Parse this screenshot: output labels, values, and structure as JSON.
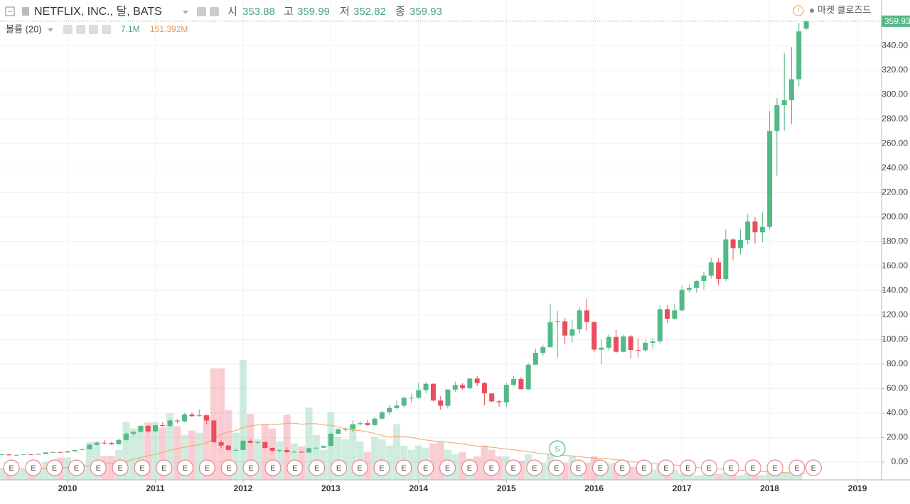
{
  "chart_data": {
    "type": "candlestick",
    "title": "NETFLIX, INC., 달, BATS",
    "header_labels": {
      "open": "시",
      "high": "고",
      "low": "저",
      "close": "종"
    },
    "volume_title": "볼륨 (20)",
    "volume_labels": {
      "volume": "7.1M",
      "volume_ma": "151.392M"
    },
    "market_status": "마켓 클로즈드",
    "up_color": "#53b987",
    "down_color": "#eb4d5c",
    "volume_ma_color": "#f0a36b",
    "grid": true,
    "xlim": [
      2009.23,
      2019.275
    ],
    "xticks": [
      2010,
      2011,
      2012,
      2013,
      2014,
      2015,
      2016,
      2017,
      2018,
      2019
    ],
    "ylim": [
      -14.5,
      361
    ],
    "yticks": [
      {
        "value": 0,
        "label": "0.00"
      },
      {
        "value": 20,
        "label": "20.00"
      },
      {
        "value": 40,
        "label": "40.00"
      },
      {
        "value": 60,
        "label": "60.00"
      },
      {
        "value": 80,
        "label": "80.00"
      },
      {
        "value": 100,
        "label": "100.00"
      },
      {
        "value": 120,
        "label": "120.00"
      },
      {
        "value": 140,
        "label": "140.00"
      },
      {
        "value": 160,
        "label": "160.00"
      },
      {
        "value": 180,
        "label": "180.00"
      },
      {
        "value": 200,
        "label": "200.00"
      },
      {
        "value": 220,
        "label": "220.00"
      },
      {
        "value": 240,
        "label": "240.00"
      },
      {
        "value": 260,
        "label": "260.00"
      },
      {
        "value": 280,
        "label": "280.00"
      },
      {
        "value": 300,
        "label": "300.00"
      },
      {
        "value": 320,
        "label": "320.00"
      },
      {
        "value": 340,
        "label": "340.00"
      }
    ],
    "x": [
      2009.25,
      2009.333,
      2009.417,
      2009.5,
      2009.583,
      2009.667,
      2009.75,
      2009.833,
      2009.917,
      2010,
      2010.083,
      2010.167,
      2010.25,
      2010.333,
      2010.417,
      2010.5,
      2010.583,
      2010.667,
      2010.75,
      2010.833,
      2010.917,
      2011,
      2011.083,
      2011.167,
      2011.25,
      2011.333,
      2011.417,
      2011.5,
      2011.583,
      2011.667,
      2011.75,
      2011.833,
      2011.917,
      2012,
      2012.083,
      2012.167,
      2012.25,
      2012.333,
      2012.417,
      2012.5,
      2012.583,
      2012.667,
      2012.75,
      2012.833,
      2012.917,
      2013,
      2013.083,
      2013.167,
      2013.25,
      2013.333,
      2013.417,
      2013.5,
      2013.583,
      2013.667,
      2013.75,
      2013.833,
      2013.917,
      2014,
      2014.083,
      2014.167,
      2014.25,
      2014.333,
      2014.417,
      2014.5,
      2014.583,
      2014.667,
      2014.75,
      2014.833,
      2014.917,
      2015,
      2015.083,
      2015.167,
      2015.25,
      2015.333,
      2015.417,
      2015.5,
      2015.583,
      2015.667,
      2015.75,
      2015.833,
      2015.917,
      2016,
      2016.083,
      2016.167,
      2016.25,
      2016.333,
      2016.417,
      2016.5,
      2016.583,
      2016.667,
      2016.75,
      2016.833,
      2016.917,
      2017,
      2017.083,
      2017.167,
      2017.25,
      2017.333,
      2017.417,
      2017.5,
      2017.583,
      2017.667,
      2017.75,
      2017.833,
      2017.917,
      2018,
      2018.083,
      2018.167,
      2018.25,
      2018.333,
      2018.417
    ],
    "open": [
      5.8,
      6.3,
      5.6,
      5.9,
      6.3,
      6.1,
      6.6,
      7.9,
      8.2,
      7.9,
      8.9,
      9.9,
      10.5,
      14.1,
      15.8,
      15.6,
      14.6,
      18.1,
      23.2,
      24.7,
      29.6,
      25.1,
      30.1,
      29.5,
      33.9,
      33.3,
      38.9,
      37.5,
      38.2,
      33.9,
      16.2,
      13.5,
      9.9,
      9.9,
      17.4,
      15.8,
      16.4,
      11.6,
      9.3,
      9.8,
      8.1,
      8.4,
      7.8,
      11.3,
      11.7,
      13.2,
      23.1,
      26.9,
      27.0,
      30.9,
      31.8,
      30.2,
      35.5,
      40.7,
      44.2,
      46.1,
      52.4,
      52.6,
      58.8,
      63.9,
      50.3,
      46.0,
      59.2,
      62.9,
      60.4,
      68.2,
      64.5,
      56.1,
      49.6,
      48.8,
      63.1,
      67.8,
      59.5,
      79.5,
      89.2,
      93.8,
      114.3,
      115.0,
      103.3,
      108.4,
      123.8,
      114.4,
      91.8,
      93.4,
      102.2,
      90.0,
      102.6,
      91.5,
      91.3,
      97.4,
      98.6,
      124.9,
      117.0,
      123.8,
      140.7,
      142.1,
      147.8,
      152.2,
      163.1,
      149.4,
      181.7,
      174.7,
      181.4,
      196.4,
      187.6,
      192.0,
      270.3,
      291.4,
      295.4,
      312.5,
      353.88
    ],
    "high": [
      6.6,
      6.5,
      6.1,
      6.5,
      6.6,
      6.9,
      8.1,
      8.6,
      8.5,
      9.2,
      10.1,
      11.0,
      15.2,
      16.8,
      18.2,
      16.5,
      19.0,
      24.8,
      25.0,
      30.0,
      30.0,
      30.5,
      32.5,
      35.1,
      34.9,
      40.1,
      40.6,
      43.0,
      38.9,
      34.4,
      17.9,
      14.0,
      10.9,
      18.3,
      18.7,
      17.0,
      16.5,
      11.9,
      10.3,
      12.1,
      9.1,
      9.0,
      11.9,
      12.1,
      13.8,
      24.5,
      27.9,
      28.6,
      34.1,
      33.3,
      34.5,
      37.2,
      41.9,
      46.3,
      50.2,
      53.6,
      55.7,
      64.8,
      65.5,
      64.5,
      53.8,
      59.6,
      65.6,
      64.5,
      68.5,
      70.0,
      65.4,
      56.1,
      50.6,
      64.5,
      70.5,
      69.5,
      81.0,
      92.6,
      95.8,
      129.3,
      123.3,
      117.5,
      116.1,
      126.4,
      133.3,
      114.8,
      100.1,
      104.4,
      107.8,
      104.0,
      103.7,
      101.0,
      100.0,
      101.3,
      128.4,
      128.3,
      129.3,
      144.0,
      145.0,
      148.5,
      155.3,
      166.9,
      166.4,
      189.9,
      182.8,
      189.8,
      202.5,
      200.0,
      204.5,
      286.8,
      297.4,
      333.9,
      338.8,
      358.5,
      359.99
    ],
    "low": [
      5.6,
      5.4,
      5.4,
      5.7,
      5.8,
      6.0,
      6.4,
      7.8,
      7.6,
      7.7,
      8.3,
      9.7,
      10.3,
      13.5,
      14.3,
      14.1,
      14.3,
      17.6,
      21.8,
      24.1,
      24.0,
      24.9,
      28.7,
      28.6,
      31.8,
      32.5,
      36.8,
      37.3,
      30.8,
      15.9,
      11.1,
      9.6,
      9.2,
      9.7,
      15.3,
      14.8,
      11.3,
      8.5,
      8.1,
      7.7,
      7.9,
      7.6,
      7.5,
      10.8,
      11.4,
      13.0,
      22.7,
      24.9,
      24.7,
      30.0,
      29.7,
      29.6,
      34.3,
      39.0,
      42.7,
      44.4,
      48.7,
      51.6,
      56.2,
      49.5,
      42.8,
      43.8,
      57.3,
      59.4,
      59.8,
      62.0,
      46.3,
      48.9,
      45.1,
      44.9,
      62.0,
      59.5,
      58.5,
      79.1,
      86.6,
      93.5,
      85.5,
      96.3,
      97.6,
      104.8,
      107.0,
      89.5,
      79.9,
      91.0,
      88.9,
      89.6,
      84.5,
      86.0,
      90.0,
      92.6,
      96.6,
      113.5,
      116.2,
      123.0,
      138.3,
      138.3,
      141.0,
      149.7,
      144.3,
      147.6,
      164.8,
      169.6,
      177.6,
      178.4,
      179.6,
      190.1,
      233.7,
      270.4,
      275.9,
      307.0,
      352.82
    ],
    "close": [
      6.3,
      5.6,
      5.9,
      6.3,
      6.1,
      6.6,
      7.9,
      8.2,
      7.9,
      8.9,
      9.9,
      10.5,
      14.1,
      15.8,
      15.6,
      14.6,
      18.1,
      23.2,
      24.7,
      29.6,
      25.1,
      30.1,
      29.5,
      33.9,
      33.3,
      38.9,
      37.5,
      38.2,
      33.9,
      16.2,
      13.5,
      9.9,
      9.9,
      17.4,
      15.8,
      16.4,
      11.6,
      9.3,
      9.8,
      8.1,
      8.4,
      7.8,
      11.3,
      11.7,
      13.2,
      23.1,
      26.9,
      27.0,
      30.9,
      31.8,
      30.2,
      35.5,
      40.7,
      44.2,
      46.1,
      52.4,
      52.6,
      58.8,
      63.9,
      50.3,
      46.0,
      59.2,
      62.9,
      60.4,
      68.2,
      64.5,
      56.1,
      49.6,
      48.8,
      63.1,
      67.8,
      59.5,
      79.5,
      89.2,
      93.8,
      114.3,
      115.0,
      103.3,
      108.4,
      123.8,
      114.4,
      91.8,
      93.4,
      102.2,
      90.0,
      102.6,
      91.5,
      91.3,
      97.4,
      98.6,
      124.9,
      117.0,
      123.8,
      140.7,
      142.1,
      147.8,
      152.2,
      163.1,
      149.4,
      181.7,
      174.7,
      181.4,
      196.4,
      187.6,
      192.0,
      270.3,
      291.4,
      295.4,
      312.5,
      351.6,
      359.93
    ],
    "volume": [
      280,
      250,
      220,
      260,
      240,
      230,
      420,
      300,
      520,
      520,
      420,
      380,
      880,
      900,
      560,
      560,
      700,
      1350,
      1200,
      1250,
      1340,
      1350,
      1220,
      1550,
      1250,
      1050,
      1150,
      1100,
      1500,
      2600,
      2600,
      1630,
      1100,
      2800,
      1540,
      950,
      1300,
      1200,
      900,
      1520,
      850,
      780,
      1690,
      1050,
      700,
      1580,
      1000,
      950,
      1300,
      900,
      650,
      1000,
      950,
      800,
      1300,
      800,
      700,
      800,
      750,
      850,
      890,
      700,
      600,
      650,
      500,
      550,
      800,
      700,
      550,
      550,
      400,
      450,
      600,
      450,
      400,
      600,
      450,
      400,
      550,
      450,
      400,
      550,
      420,
      380,
      400,
      330,
      300,
      320,
      250,
      240,
      380,
      300,
      240,
      150,
      110,
      110,
      120,
      130,
      140,
      180,
      120,
      110,
      160,
      110,
      110,
      200,
      180,
      170,
      160,
      150,
      7.1
    ],
    "volume_ma": [
      260,
      258,
      255,
      255,
      254,
      252,
      260,
      262,
      275,
      290,
      300,
      305,
      330,
      360,
      370,
      380,
      395,
      440,
      480,
      520,
      560,
      600,
      640,
      690,
      730,
      760,
      790,
      820,
      860,
      960,
      1060,
      1120,
      1150,
      1220,
      1260,
      1280,
      1290,
      1300,
      1300,
      1320,
      1320,
      1300,
      1310,
      1310,
      1280,
      1270,
      1240,
      1190,
      1160,
      1150,
      1120,
      1080,
      1030,
      1000,
      1020,
      1010,
      990,
      960,
      930,
      910,
      900,
      880,
      860,
      840,
      810,
      790,
      780,
      760,
      740,
      720,
      700,
      680,
      660,
      630,
      610,
      600,
      590,
      570,
      560,
      540,
      520,
      510,
      500,
      490,
      470,
      450,
      430,
      410,
      390,
      380,
      370,
      360,
      350,
      330,
      310,
      290,
      275,
      260,
      250,
      245,
      235,
      225,
      215,
      205,
      195,
      185,
      178,
      170,
      165,
      160,
      151.392
    ],
    "earnings": {
      "label": "E",
      "x": [
        2009.36,
        2009.61,
        2009.85,
        2010.1,
        2010.35,
        2010.6,
        2010.85,
        2011.1,
        2011.34,
        2011.59,
        2011.84,
        2012.09,
        2012.34,
        2012.59,
        2012.84,
        2013.09,
        2013.33,
        2013.58,
        2013.83,
        2014.08,
        2014.33,
        2014.58,
        2014.83,
        2015.08,
        2015.32,
        2015.57,
        2015.82,
        2016.07,
        2016.32,
        2016.57,
        2016.82,
        2017.07,
        2017.31,
        2017.56,
        2017.81,
        2018.06,
        2018.31,
        2018.5
      ]
    },
    "split": {
      "label": "S",
      "x": 2015.58
    }
  }
}
